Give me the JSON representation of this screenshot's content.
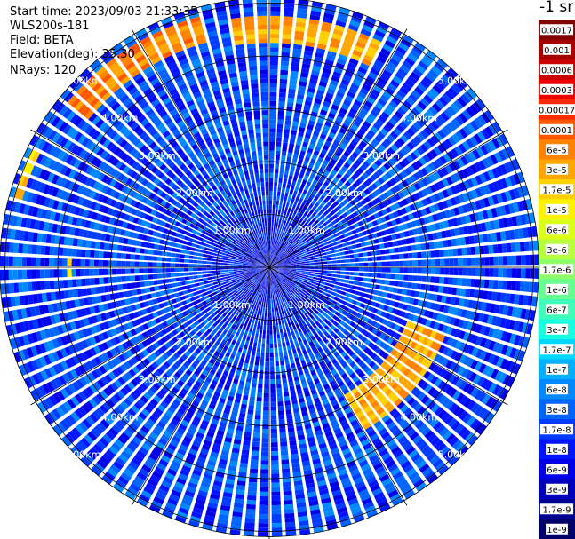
{
  "info": {
    "start_time": "Start time: 2023/09/03 21:33:35",
    "instrument": "WLS200s-181",
    "field": "Field: BETA",
    "elevation": "Elevation(deg): 35.30",
    "nrays": "NRays: 120"
  },
  "colorbar": {
    "unit_label": "-1 sr",
    "levels": [
      "0.0017",
      "0.001",
      "0.0006",
      "0.0003",
      "0.00017",
      "0.0001",
      "6e-5",
      "3e-5",
      "1.7e-5",
      "1e-5",
      "6e-6",
      "3e-6",
      "1.7e-6",
      "1e-6",
      "6e-7",
      "3e-7",
      "1.7e-7",
      "1e-7",
      "6e-8",
      "3e-8",
      "1.7e-8",
      "1e-8",
      "6e-9",
      "3e-9",
      "1.7e-9",
      "1e-9"
    ],
    "colors": [
      "#800000",
      "#a40000",
      "#c80000",
      "#ee0000",
      "#ff2a00",
      "#ff5600",
      "#ff8200",
      "#ffa700",
      "#ffd100",
      "#fff200",
      "#dcff1a",
      "#b8ff3e",
      "#8dff6a",
      "#66ff90",
      "#3dffba",
      "#17ffe0",
      "#00d8ff",
      "#00b0ff",
      "#0088ff",
      "#0064ff",
      "#003cff",
      "#0014ff",
      "#0000e8",
      "#0000bc",
      "#000094",
      "#000068"
    ]
  },
  "chart_data": {
    "type": "heatmap",
    "projection": "polar PPI scan",
    "field": "BETA",
    "elevation_deg": 35.3,
    "n_rays": 120,
    "range_ring_labels": [
      "1.00km",
      "2.00km",
      "3.00km",
      "4.00km",
      "5.00km"
    ],
    "range_rings_km": [
      1,
      2,
      3,
      4,
      5
    ],
    "max_range_km": 5.1,
    "grid": true,
    "colorbar_placement": "right",
    "background_level": "1.7e-8",
    "high_backscatter_features": [
      {
        "azimuth_deg": [
          -52,
          -16
        ],
        "range_km": [
          4.4,
          4.95
        ],
        "level": "6e-5"
      },
      {
        "azimuth_deg": [
          -8,
          28
        ],
        "range_km": [
          4.25,
          4.75
        ],
        "level": "3e-5"
      },
      {
        "azimuth_deg": [
          -75,
          -63
        ],
        "range_km": [
          4.85,
          5.05
        ],
        "level": "1.7e-5"
      },
      {
        "azimuth_deg": [
          110,
          150
        ],
        "range_km": [
          2.8,
          3.55
        ],
        "level": "3e-5"
      },
      {
        "azimuth_deg": [
          -92,
          -88
        ],
        "range_km": [
          3.7,
          3.85
        ],
        "level": "1e-5"
      }
    ]
  }
}
